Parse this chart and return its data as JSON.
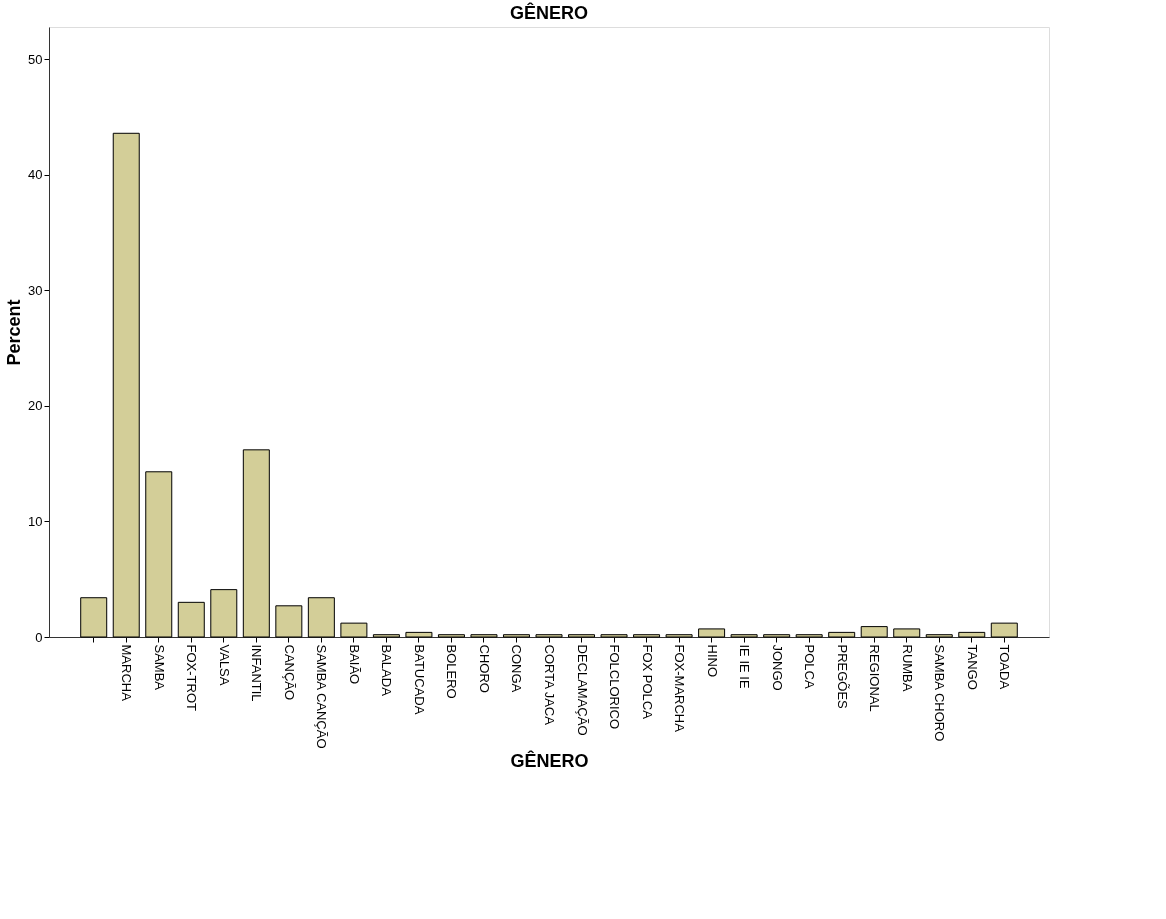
{
  "chart_data": {
    "type": "bar",
    "title": "GÊNERO",
    "xlabel": "GÊNERO",
    "ylabel": "Percent",
    "categories": [
      null,
      "MARCHA",
      "SAMBA",
      "FOX-TROT",
      "VALSA",
      "INFANTIL",
      "CANÇÃO",
      "SAMBA CANÇÃO",
      "BAIÃO",
      "BALADA",
      "BATUCADA",
      "BOLERO",
      "CHORO",
      "CONGA",
      "CORTA JACA",
      "DECLAMAÇÃO",
      "FOLCLORICO",
      "FOX POLCA",
      "FOX-MARCHA",
      "HINO",
      "IE IE IE",
      "JONGO",
      "POLCA",
      "PREGÕES",
      "REGIONAL",
      "RUMBA",
      "SAMBA CHORO",
      "TANGO",
      "TOADA"
    ],
    "values": [
      3.4,
      43.6,
      14.3,
      3.0,
      4.1,
      16.2,
      2.7,
      3.4,
      1.2,
      0.2,
      0.4,
      0.2,
      0.2,
      0.2,
      0.2,
      0.2,
      0.2,
      0.2,
      0.2,
      0.7,
      0.2,
      0.2,
      0.2,
      0.4,
      0.9,
      0.7,
      0.2,
      0.4,
      1.2
    ],
    "color": "#d3ce98",
    "ylim": [
      0,
      52.8
    ],
    "yticks": [
      0,
      10,
      20,
      30,
      40,
      50
    ],
    "grid": false
  }
}
